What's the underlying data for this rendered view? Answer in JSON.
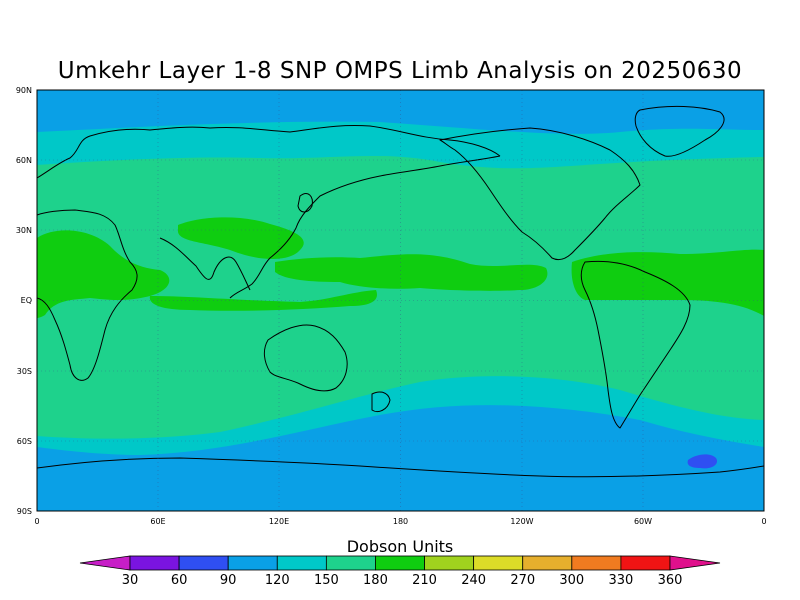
{
  "title": "Umkehr Layer 1-8 SNP OMPS Limb Analysis on 20250630",
  "lat_labels": [
    "90N",
    "60N",
    "30N",
    "EQ",
    "30S",
    "60S",
    "90S"
  ],
  "lon_labels": [
    "0",
    "60E",
    "120E",
    "180",
    "120W",
    "60W",
    "0"
  ],
  "colorbar": {
    "title": "Dobson Units",
    "levels": [
      "30",
      "60",
      "90",
      "120",
      "150",
      "180",
      "210",
      "240",
      "270",
      "300",
      "330",
      "360"
    ],
    "colors": [
      "#c71ec7",
      "#7a14e0",
      "#2f4ff2",
      "#0aa0e6",
      "#00c8c8",
      "#1ed28c",
      "#0fcd10",
      "#a0d21e",
      "#dcdc28",
      "#e6af2d",
      "#f07b20",
      "#f01414",
      "#e0108c"
    ]
  },
  "field_colors": {
    "band_90_120": "#0aa0e6",
    "band_120_150": "#00c8c8",
    "band_150_180": "#1ed28c",
    "band_180_210": "#0fcd10",
    "band_60_90": "#2f4ff2"
  }
}
